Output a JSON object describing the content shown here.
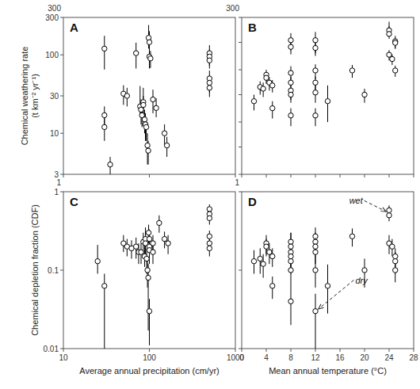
{
  "chart_data": [
    {
      "type": "scatter",
      "title": "A",
      "log": true,
      "tick_labels": "y",
      "marker": "open-circle",
      "color": "#000000",
      "y_label": "Chemical weathering rate\n(t km⁻² yr⁻¹)",
      "x": [
        30,
        30,
        30,
        35,
        50,
        55,
        70,
        78,
        80,
        82,
        85,
        85,
        88,
        90,
        90,
        92,
        95,
        97,
        98,
        100,
        100,
        103,
        110,
        120,
        150,
        160,
        500,
        500,
        500,
        500,
        500,
        500
      ],
      "values": [
        120,
        17,
        12,
        4,
        32,
        30,
        105,
        22,
        20,
        17,
        25,
        23,
        15,
        13,
        13,
        12,
        7,
        6,
        165,
        145,
        95,
        90,
        27,
        21,
        10,
        7,
        105,
        95,
        85,
        50,
        44,
        38
      ],
      "error_low": [
        55,
        5,
        4,
        1,
        9,
        8,
        38,
        6,
        7,
        5,
        9,
        7,
        5,
        4,
        5,
        4,
        3,
        2,
        45,
        35,
        28,
        22,
        9,
        5,
        3,
        2,
        28,
        22,
        18,
        13,
        11,
        9
      ],
      "error_high": [
        55,
        5,
        4,
        1,
        9,
        8,
        38,
        18,
        7,
        5,
        13,
        7,
        5,
        4,
        5,
        4,
        3,
        2,
        75,
        55,
        28,
        22,
        9,
        7,
        3,
        2,
        28,
        22,
        18,
        13,
        11,
        9
      ],
      "xlim": [
        10,
        1000
      ],
      "xticks": [
        10,
        100,
        1000
      ],
      "ylim": [
        3,
        300
      ],
      "yticks": [
        3,
        10,
        30,
        100,
        300
      ],
      "annotations": [
        {
          "text": "300"
        }
      ]
    },
    {
      "type": "scatter",
      "title": "B",
      "log": "y",
      "tick_labels": false,
      "marker": "open-circle",
      "color": "#000000",
      "x": [
        2,
        3,
        3.5,
        4,
        4,
        4.5,
        5,
        5,
        8,
        8,
        8,
        8,
        8,
        8,
        8,
        12,
        12,
        12,
        12,
        12,
        12,
        14,
        18,
        20,
        24,
        24,
        24,
        24.5,
        25,
        25,
        25
      ],
      "values": [
        7.5,
        14,
        13,
        24,
        21,
        17,
        15,
        5.5,
        110,
        82,
        26,
        17,
        12,
        10,
        4,
        110,
        78,
        29,
        17,
        11,
        4,
        7.5,
        29,
        10,
        170,
        145,
        58,
        48,
        105,
        98,
        29
      ],
      "error_low": [
        2.5,
        4,
        4,
        6,
        5,
        5,
        4,
        2,
        40,
        23,
        9,
        5,
        4,
        3,
        1.5,
        48,
        23,
        9,
        5,
        4,
        1.5,
        4.5,
        8,
        3,
        38,
        28,
        13,
        11,
        28,
        23,
        7
      ],
      "error_high": [
        2.5,
        4,
        4,
        6,
        5,
        5,
        4,
        2,
        40,
        23,
        9,
        5,
        4,
        3,
        1.5,
        48,
        23,
        9,
        5,
        4,
        1.5,
        7.5,
        8,
        3,
        78,
        58,
        13,
        11,
        28,
        23,
        7
      ],
      "xlim": [
        0,
        28
      ],
      "xticks": [
        0,
        4,
        8,
        12,
        16,
        20,
        24,
        28
      ],
      "ylim": [
        0.3,
        300
      ],
      "yticks": [
        0.3,
        1,
        3,
        10,
        30,
        100,
        300
      ],
      "annotations": [
        {
          "text": "300"
        }
      ]
    },
    {
      "type": "scatter",
      "title": "C",
      "log": true,
      "marker": "open-circle",
      "color": "#000000",
      "y_label": "Chemical depletion fraction (CDF)",
      "x_label": "Average annual precipitation (cm/yr)",
      "x": [
        25,
        30,
        50,
        55,
        62,
        70,
        75,
        80,
        85,
        88,
        90,
        90,
        93,
        95,
        97,
        98,
        100,
        100,
        100,
        100,
        110,
        110,
        130,
        150,
        165,
        500,
        500,
        500,
        500,
        500,
        500
      ],
      "values": [
        0.13,
        0.063,
        0.22,
        0.2,
        0.19,
        0.2,
        0.17,
        0.17,
        0.23,
        0.15,
        0.25,
        0.22,
        0.14,
        0.1,
        0.08,
        0.3,
        0.25,
        0.2,
        0.18,
        0.03,
        0.22,
        0.17,
        0.4,
        0.25,
        0.22,
        0.6,
        0.52,
        0.46,
        0.27,
        0.22,
        0.19
      ],
      "error_low": [
        0.04,
        0.053,
        0.05,
        0.05,
        0.05,
        0.06,
        0.05,
        0.05,
        0.07,
        0.04,
        0.07,
        0.06,
        0.05,
        0.04,
        0.063,
        0.08,
        0.08,
        0.06,
        0.06,
        0.019,
        0.06,
        0.05,
        0.1,
        0.06,
        0.06,
        0.09,
        0.09,
        0.08,
        0.05,
        0.045,
        0.04
      ],
      "error_high": [
        0.08,
        0.027,
        0.06,
        0.05,
        0.05,
        0.06,
        0.05,
        0.05,
        0.07,
        0.07,
        0.1,
        0.06,
        0.05,
        0.04,
        0.04,
        0.08,
        0.08,
        0.06,
        0.06,
        0.013,
        0.06,
        0.05,
        0.1,
        0.06,
        0.06,
        0.09,
        0.09,
        0.08,
        0.05,
        0.045,
        0.04
      ],
      "xlim": [
        10,
        1000
      ],
      "xticks": [
        10,
        100,
        1000
      ],
      "ylim": [
        0.01,
        1
      ],
      "yticks": [
        0.01,
        0.1,
        1
      ],
      "annotations": [
        {
          "text": "1"
        }
      ]
    },
    {
      "type": "scatter",
      "title": "D",
      "log": "y",
      "tick_labels": "x",
      "marker": "open-circle",
      "color": "#000000",
      "x_label": "Mean annual temperature (°C)",
      "x": [
        2,
        3,
        3.5,
        4,
        4,
        4.5,
        5,
        5,
        8,
        8,
        8,
        8,
        8,
        8,
        8,
        12,
        12,
        12,
        12,
        12,
        12,
        14,
        18,
        20,
        24,
        24,
        24,
        24.5,
        25,
        25,
        25
      ],
      "values": [
        0.13,
        0.14,
        0.12,
        0.22,
        0.2,
        0.17,
        0.15,
        0.063,
        0.23,
        0.2,
        0.17,
        0.15,
        0.13,
        0.1,
        0.04,
        0.27,
        0.23,
        0.2,
        0.17,
        0.1,
        0.03,
        0.063,
        0.27,
        0.1,
        0.58,
        0.5,
        0.22,
        0.2,
        0.15,
        0.13,
        0.1
      ],
      "error_low": [
        0.04,
        0.05,
        0.04,
        0.06,
        0.05,
        0.05,
        0.04,
        0.02,
        0.07,
        0.06,
        0.05,
        0.05,
        0.04,
        0.04,
        0.02,
        0.08,
        0.07,
        0.06,
        0.05,
        0.04,
        0.02,
        0.035,
        0.07,
        0.04,
        0.09,
        0.08,
        0.06,
        0.05,
        0.04,
        0.04,
        0.03
      ],
      "error_high": [
        0.05,
        0.05,
        0.04,
        0.06,
        0.05,
        0.05,
        0.04,
        0.02,
        0.07,
        0.1,
        0.05,
        0.05,
        0.04,
        0.04,
        0.02,
        0.08,
        0.07,
        0.06,
        0.05,
        0.04,
        0.02,
        0.055,
        0.07,
        0.04,
        0.09,
        0.08,
        0.06,
        0.05,
        0.04,
        0.04,
        0.03
      ],
      "xlim": [
        0,
        28
      ],
      "xticks": [
        0,
        4,
        8,
        12,
        16,
        20,
        24,
        28
      ],
      "ylim": [
        0.01,
        1
      ],
      "yticks": [
        0.01,
        0.1,
        1
      ],
      "annotations": [
        {
          "text": "1"
        },
        {
          "text": "wet",
          "x": 17.5,
          "y": 0.7,
          "arrow_x": 23.5,
          "arrow_y": 0.56
        },
        {
          "text": "dry",
          "x": 18.5,
          "y": 0.068,
          "arrow_x": 12.5,
          "arrow_y": 0.032
        }
      ]
    }
  ]
}
